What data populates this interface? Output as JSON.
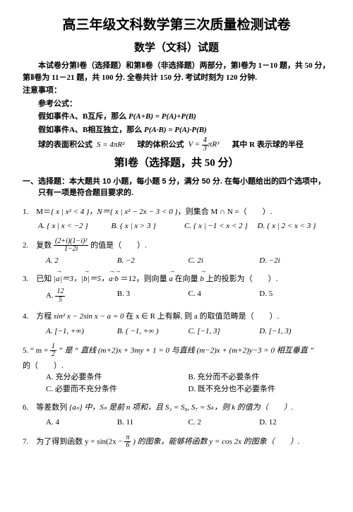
{
  "title_main": "高三年级文科数学第三次质量检测试卷",
  "title_sub": "数学（文科）试题",
  "intro1": "本试卷分第Ⅰ卷（选择题）和第Ⅱ卷（非选择题）两部分，第Ⅰ卷为 1－10 题，共 50 分，第Ⅱ卷为 11－21 题，共 100 分. 全卷共计 150 分. 考试时刻为 120 分钟.",
  "notice_head": "注意事项：",
  "ref_head": "参考公式：",
  "mutual": "假如事件A、B互斥，那么",
  "mutual_f": "P(A+B) = P(A)+P(B)",
  "indep": "假如事件A、B相互独立，那么",
  "indep_f": "P(A·B) = P(A)·P(B)",
  "surf_label": "球的表面积公式",
  "surf_f": "S = 4πR²",
  "vol_label": "球的体积公式",
  "vol_tail": "其中 R 表示球的半径",
  "section1": "第Ⅰ卷（选择题，共 50 分）",
  "part1_head": "一、选择题：本大题共 10 小题，每小题 5 分，满分 50 分. 在每小题给出的四个选项中，只有一项是符合题目要求的.",
  "q1": {
    "stem_a": "1.　M＝",
    "set1": "{ x | x² < 4 }，N＝",
    "set2": "{ x | x² − 2x − 3 < 0 }",
    "tail": "，则集合 M ∩ N =（　　）.",
    "A": "A.  { x | x < −2 }",
    "B": "B.  { x | x > 3 }",
    "C": "C.  { x | −1 < x < 2 }",
    "D": "D.  { x | 2 < x < 3 }"
  },
  "q2": {
    "head": "2.　复数",
    "num": "(2+i)(1−i)²",
    "den": "1−2i",
    "tail": "的值是（　　）.",
    "A": "A.  2",
    "B": "B.  −2",
    "C": "C.  2i",
    "D": "D.  −2i"
  },
  "q3": {
    "head": "3.　已知",
    "tail1": "＝12，则向量",
    "tail2": "在向量",
    "tail3": "上的投影为（　　）.",
    "A_num": "12",
    "A_den": "5",
    "B": "B. 3",
    "C": "C. 4",
    "D": "D. 5"
  },
  "q4": {
    "head": "4.　方程",
    "expr": "sin² x − 2sin x − a = 0",
    "mid": "在 x ∈ R 上有解, 则 a 的取值范畴是（　　）.",
    "A": "A.  [−1, +∞)",
    "B": "B.  ( −1, +∞ )",
    "C": "C.  [−1, 3]",
    "D": "D.  [−1, 3)"
  },
  "q5": {
    "head": "5.  “ m =",
    "num": "1",
    "den": "2",
    "mid": "” 是 “ 直线 (m+2)x + 3my + 1 = 0 与直线 (m−2)x + (m+2)y−3 = 0 相互垂直 ”",
    "tail": "的（　　）.",
    "A": "A. 充分必要条件",
    "B": "B. 充分而不必要条件",
    "C": "C. 必要而不充分条件",
    "D": "D. 既不充分也不必要条件"
  },
  "q6": {
    "head": "6.　等差数列",
    "seq": "{aₙ}",
    "mid": "中，Sₙ 是前 n 项和，且 S₃ = S₈, S₇ = Sₖ，则 k 的值为（　　）.",
    "A": "A.  4",
    "B": "B. 11",
    "C": "C.  2",
    "D": "D. 12"
  },
  "q7": {
    "head": "7.　为了得到函数 y = sin(2x −",
    "num": "π",
    "den": "6",
    "tail": ") 的图象，能够将函数 y = cos 2x 的图象（　　）."
  }
}
